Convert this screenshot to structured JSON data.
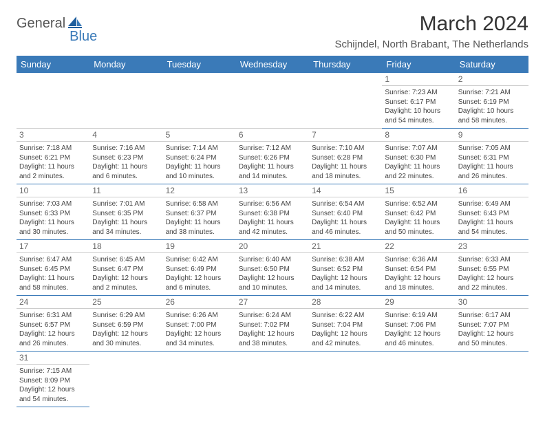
{
  "logo": {
    "word1": "General",
    "word2": "Blue"
  },
  "title": "March 2024",
  "subtitle": "Schijndel, North Brabant, The Netherlands",
  "colors": {
    "header_bg": "#3a7ab8",
    "header_text": "#ffffff",
    "row_divider": "#3a7ab8",
    "daynum_divider": "#cccccc",
    "body_text": "#444444",
    "title_text": "#333333",
    "background": "#ffffff"
  },
  "typography": {
    "title_fontsize": 30,
    "subtitle_fontsize": 15,
    "dayhead_fontsize": 13,
    "daynum_fontsize": 12,
    "info_fontsize": 10
  },
  "day_headers": [
    "Sunday",
    "Monday",
    "Tuesday",
    "Wednesday",
    "Thursday",
    "Friday",
    "Saturday"
  ],
  "weeks": [
    [
      null,
      null,
      null,
      null,
      null,
      {
        "n": "1",
        "sr": "Sunrise: 7:23 AM",
        "ss": "Sunset: 6:17 PM",
        "dl": "Daylight: 10 hours and 54 minutes."
      },
      {
        "n": "2",
        "sr": "Sunrise: 7:21 AM",
        "ss": "Sunset: 6:19 PM",
        "dl": "Daylight: 10 hours and 58 minutes."
      }
    ],
    [
      {
        "n": "3",
        "sr": "Sunrise: 7:18 AM",
        "ss": "Sunset: 6:21 PM",
        "dl": "Daylight: 11 hours and 2 minutes."
      },
      {
        "n": "4",
        "sr": "Sunrise: 7:16 AM",
        "ss": "Sunset: 6:23 PM",
        "dl": "Daylight: 11 hours and 6 minutes."
      },
      {
        "n": "5",
        "sr": "Sunrise: 7:14 AM",
        "ss": "Sunset: 6:24 PM",
        "dl": "Daylight: 11 hours and 10 minutes."
      },
      {
        "n": "6",
        "sr": "Sunrise: 7:12 AM",
        "ss": "Sunset: 6:26 PM",
        "dl": "Daylight: 11 hours and 14 minutes."
      },
      {
        "n": "7",
        "sr": "Sunrise: 7:10 AM",
        "ss": "Sunset: 6:28 PM",
        "dl": "Daylight: 11 hours and 18 minutes."
      },
      {
        "n": "8",
        "sr": "Sunrise: 7:07 AM",
        "ss": "Sunset: 6:30 PM",
        "dl": "Daylight: 11 hours and 22 minutes."
      },
      {
        "n": "9",
        "sr": "Sunrise: 7:05 AM",
        "ss": "Sunset: 6:31 PM",
        "dl": "Daylight: 11 hours and 26 minutes."
      }
    ],
    [
      {
        "n": "10",
        "sr": "Sunrise: 7:03 AM",
        "ss": "Sunset: 6:33 PM",
        "dl": "Daylight: 11 hours and 30 minutes."
      },
      {
        "n": "11",
        "sr": "Sunrise: 7:01 AM",
        "ss": "Sunset: 6:35 PM",
        "dl": "Daylight: 11 hours and 34 minutes."
      },
      {
        "n": "12",
        "sr": "Sunrise: 6:58 AM",
        "ss": "Sunset: 6:37 PM",
        "dl": "Daylight: 11 hours and 38 minutes."
      },
      {
        "n": "13",
        "sr": "Sunrise: 6:56 AM",
        "ss": "Sunset: 6:38 PM",
        "dl": "Daylight: 11 hours and 42 minutes."
      },
      {
        "n": "14",
        "sr": "Sunrise: 6:54 AM",
        "ss": "Sunset: 6:40 PM",
        "dl": "Daylight: 11 hours and 46 minutes."
      },
      {
        "n": "15",
        "sr": "Sunrise: 6:52 AM",
        "ss": "Sunset: 6:42 PM",
        "dl": "Daylight: 11 hours and 50 minutes."
      },
      {
        "n": "16",
        "sr": "Sunrise: 6:49 AM",
        "ss": "Sunset: 6:43 PM",
        "dl": "Daylight: 11 hours and 54 minutes."
      }
    ],
    [
      {
        "n": "17",
        "sr": "Sunrise: 6:47 AM",
        "ss": "Sunset: 6:45 PM",
        "dl": "Daylight: 11 hours and 58 minutes."
      },
      {
        "n": "18",
        "sr": "Sunrise: 6:45 AM",
        "ss": "Sunset: 6:47 PM",
        "dl": "Daylight: 12 hours and 2 minutes."
      },
      {
        "n": "19",
        "sr": "Sunrise: 6:42 AM",
        "ss": "Sunset: 6:49 PM",
        "dl": "Daylight: 12 hours and 6 minutes."
      },
      {
        "n": "20",
        "sr": "Sunrise: 6:40 AM",
        "ss": "Sunset: 6:50 PM",
        "dl": "Daylight: 12 hours and 10 minutes."
      },
      {
        "n": "21",
        "sr": "Sunrise: 6:38 AM",
        "ss": "Sunset: 6:52 PM",
        "dl": "Daylight: 12 hours and 14 minutes."
      },
      {
        "n": "22",
        "sr": "Sunrise: 6:36 AM",
        "ss": "Sunset: 6:54 PM",
        "dl": "Daylight: 12 hours and 18 minutes."
      },
      {
        "n": "23",
        "sr": "Sunrise: 6:33 AM",
        "ss": "Sunset: 6:55 PM",
        "dl": "Daylight: 12 hours and 22 minutes."
      }
    ],
    [
      {
        "n": "24",
        "sr": "Sunrise: 6:31 AM",
        "ss": "Sunset: 6:57 PM",
        "dl": "Daylight: 12 hours and 26 minutes."
      },
      {
        "n": "25",
        "sr": "Sunrise: 6:29 AM",
        "ss": "Sunset: 6:59 PM",
        "dl": "Daylight: 12 hours and 30 minutes."
      },
      {
        "n": "26",
        "sr": "Sunrise: 6:26 AM",
        "ss": "Sunset: 7:00 PM",
        "dl": "Daylight: 12 hours and 34 minutes."
      },
      {
        "n": "27",
        "sr": "Sunrise: 6:24 AM",
        "ss": "Sunset: 7:02 PM",
        "dl": "Daylight: 12 hours and 38 minutes."
      },
      {
        "n": "28",
        "sr": "Sunrise: 6:22 AM",
        "ss": "Sunset: 7:04 PM",
        "dl": "Daylight: 12 hours and 42 minutes."
      },
      {
        "n": "29",
        "sr": "Sunrise: 6:19 AM",
        "ss": "Sunset: 7:06 PM",
        "dl": "Daylight: 12 hours and 46 minutes."
      },
      {
        "n": "30",
        "sr": "Sunrise: 6:17 AM",
        "ss": "Sunset: 7:07 PM",
        "dl": "Daylight: 12 hours and 50 minutes."
      }
    ],
    [
      {
        "n": "31",
        "sr": "Sunrise: 7:15 AM",
        "ss": "Sunset: 8:09 PM",
        "dl": "Daylight: 12 hours and 54 minutes."
      },
      null,
      null,
      null,
      null,
      null,
      null
    ]
  ]
}
